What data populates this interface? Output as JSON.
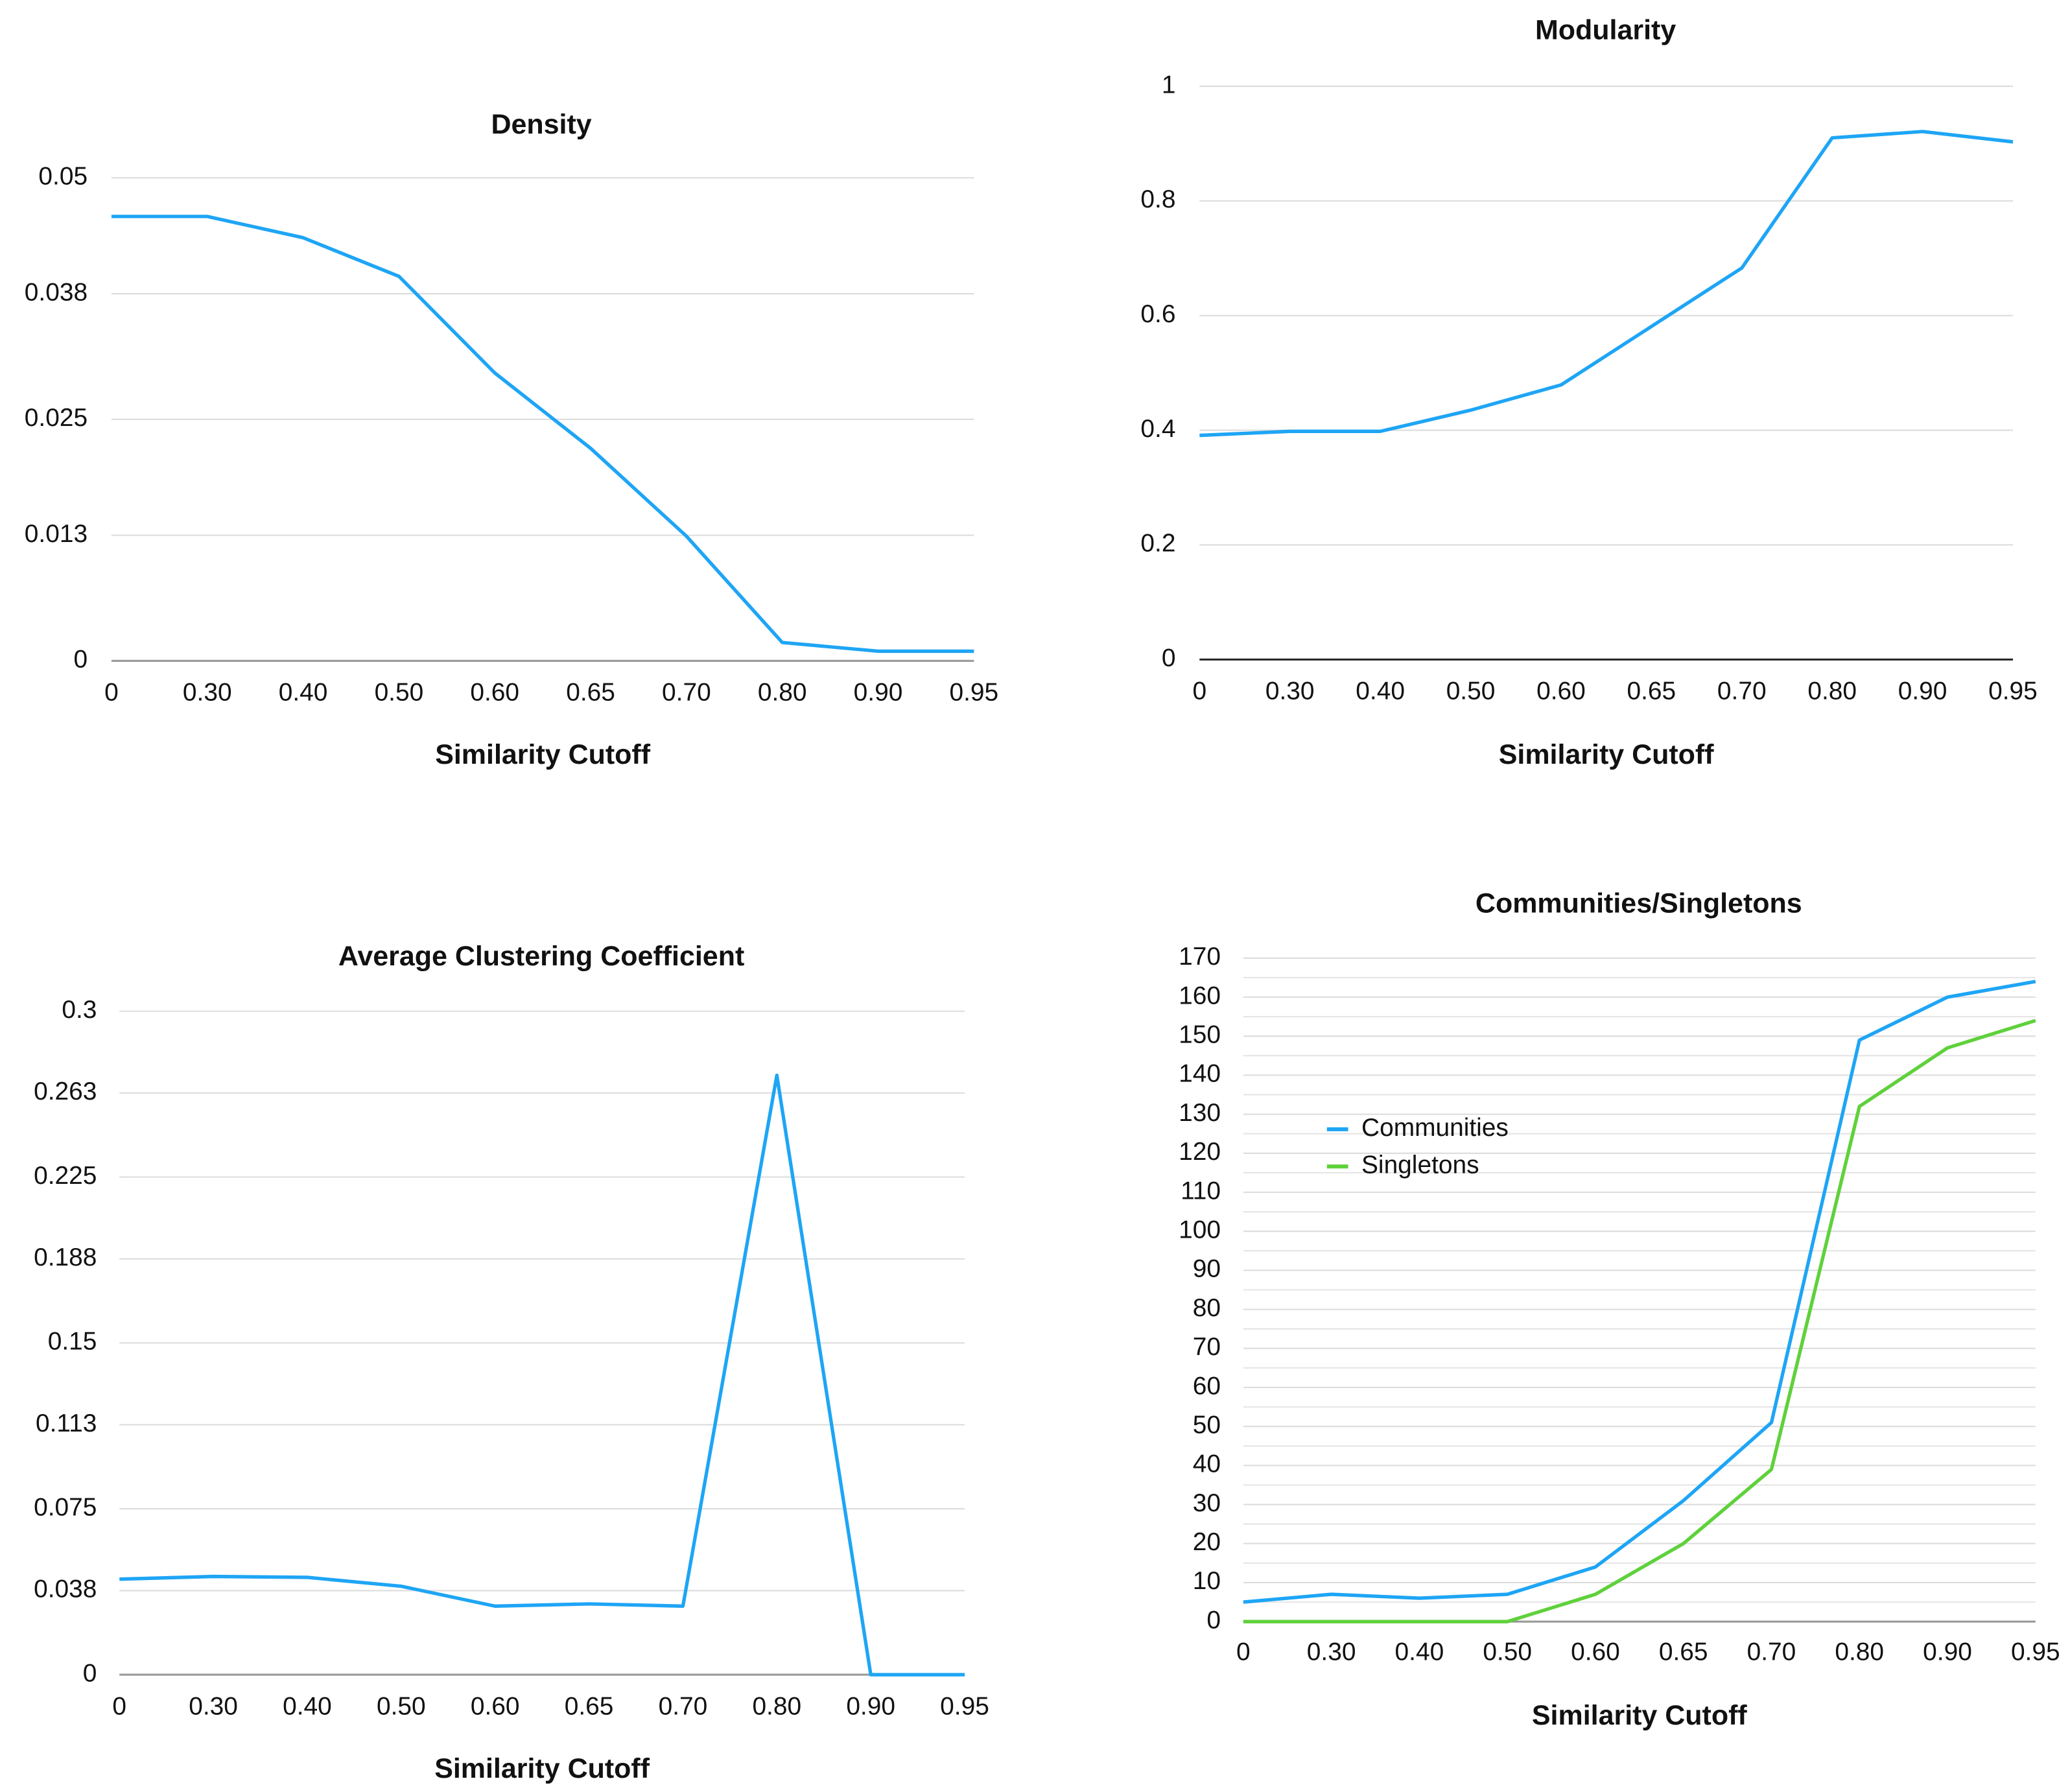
{
  "chart_data": [
    {
      "type": "line",
      "title": "Density",
      "x_label": "Similarity Cutoff",
      "categories": [
        "0",
        "0.30",
        "0.40",
        "0.50",
        "0.60",
        "0.65",
        "0.70",
        "0.80",
        "0.90",
        "0.95"
      ],
      "values": [
        0.046,
        0.046,
        0.0438,
        0.0398,
        0.0298,
        0.022,
        0.0129,
        0.0019,
        0.001,
        0.001
      ],
      "color": "#1ea5f5",
      "ylim": [
        0,
        0.05
      ],
      "yticks": [
        0,
        0.013,
        0.025,
        0.038,
        0.05
      ],
      "grid": true
    },
    {
      "type": "line",
      "title": "Modularity",
      "x_label": "Similarity Cutoff",
      "categories": [
        "0",
        "0.30",
        "0.40",
        "0.50",
        "0.60",
        "0.65",
        "0.70",
        "0.80",
        "0.90",
        "0.95"
      ],
      "values": [
        0.391,
        0.398,
        0.398,
        0.435,
        0.479,
        0.581,
        0.683,
        0.91,
        0.921,
        0.903
      ],
      "color": "#1ea5f5",
      "ylim": [
        0,
        1
      ],
      "yticks": [
        0,
        0.2,
        0.4,
        0.6,
        0.8,
        1
      ],
      "grid": true
    },
    {
      "type": "line",
      "title": "Average Clustering Coefficient",
      "x_label": "Similarity Cutoff",
      "categories": [
        "0",
        "0.30",
        "0.40",
        "0.50",
        "0.60",
        "0.65",
        "0.70",
        "0.80",
        "0.90",
        "0.95"
      ],
      "values": [
        0.0432,
        0.0444,
        0.044,
        0.04,
        0.031,
        0.032,
        0.031,
        0.271,
        0,
        0
      ],
      "color": "#1ea5f5",
      "ylim": [
        0,
        0.3
      ],
      "yticks": [
        0,
        0.038,
        0.075,
        0.113,
        0.15,
        0.188,
        0.225,
        0.263,
        0.3
      ],
      "grid": true
    },
    {
      "type": "line",
      "title": "Communities/Singletons",
      "x_label": "Similarity Cutoff",
      "categories": [
        "0",
        "0.30",
        "0.40",
        "0.50",
        "0.60",
        "0.65",
        "0.70",
        "0.80",
        "0.90",
        "0.95"
      ],
      "series": [
        {
          "name": "Communities",
          "color": "#1ea5f5",
          "values": [
            5,
            7,
            6,
            7,
            14,
            31,
            51,
            149,
            160,
            164
          ]
        },
        {
          "name": "Singletons",
          "color": "#5fd13b",
          "values": [
            0,
            0,
            0,
            0,
            7,
            20,
            39,
            132,
            147,
            154
          ]
        }
      ],
      "ylim": [
        0,
        170
      ],
      "yticks": [
        0,
        10,
        20,
        30,
        40,
        50,
        60,
        70,
        80,
        90,
        100,
        110,
        120,
        130,
        140,
        150,
        160,
        170
      ],
      "grid": true,
      "minor_grid": true,
      "legend": "upper left"
    }
  ]
}
